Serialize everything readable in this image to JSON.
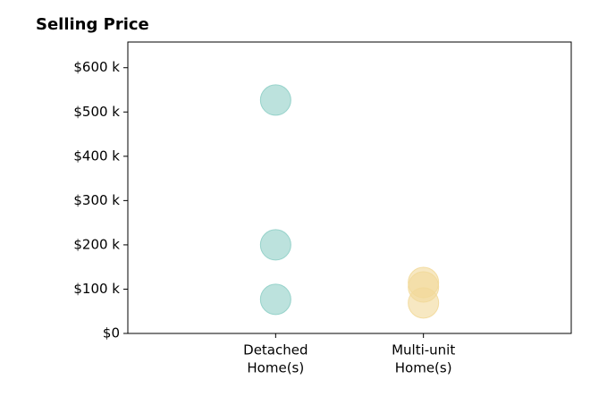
{
  "chart_data": {
    "type": "strip",
    "title": "Selling Price",
    "categories": [
      [
        "Detached",
        "Home(s)"
      ],
      [
        "Multi-unit",
        "Home(s)"
      ]
    ],
    "values": [
      [
        527000,
        200000,
        77000
      ],
      [
        115000,
        105000,
        69000
      ]
    ],
    "colors": [
      "#8fcfc7",
      "#f2d99a"
    ],
    "ylim": [
      0,
      658000
    ],
    "yticks": [
      {
        "value": 0,
        "label": "$0"
      },
      {
        "value": 100000,
        "label": "$100 k"
      },
      {
        "value": 200000,
        "label": "$200 k"
      },
      {
        "value": 300000,
        "label": "$300 k"
      },
      {
        "value": 400000,
        "label": "$400 k"
      },
      {
        "value": 500000,
        "label": "$500 k"
      },
      {
        "value": 600000,
        "label": "$600 k"
      }
    ],
    "grid": false
  }
}
